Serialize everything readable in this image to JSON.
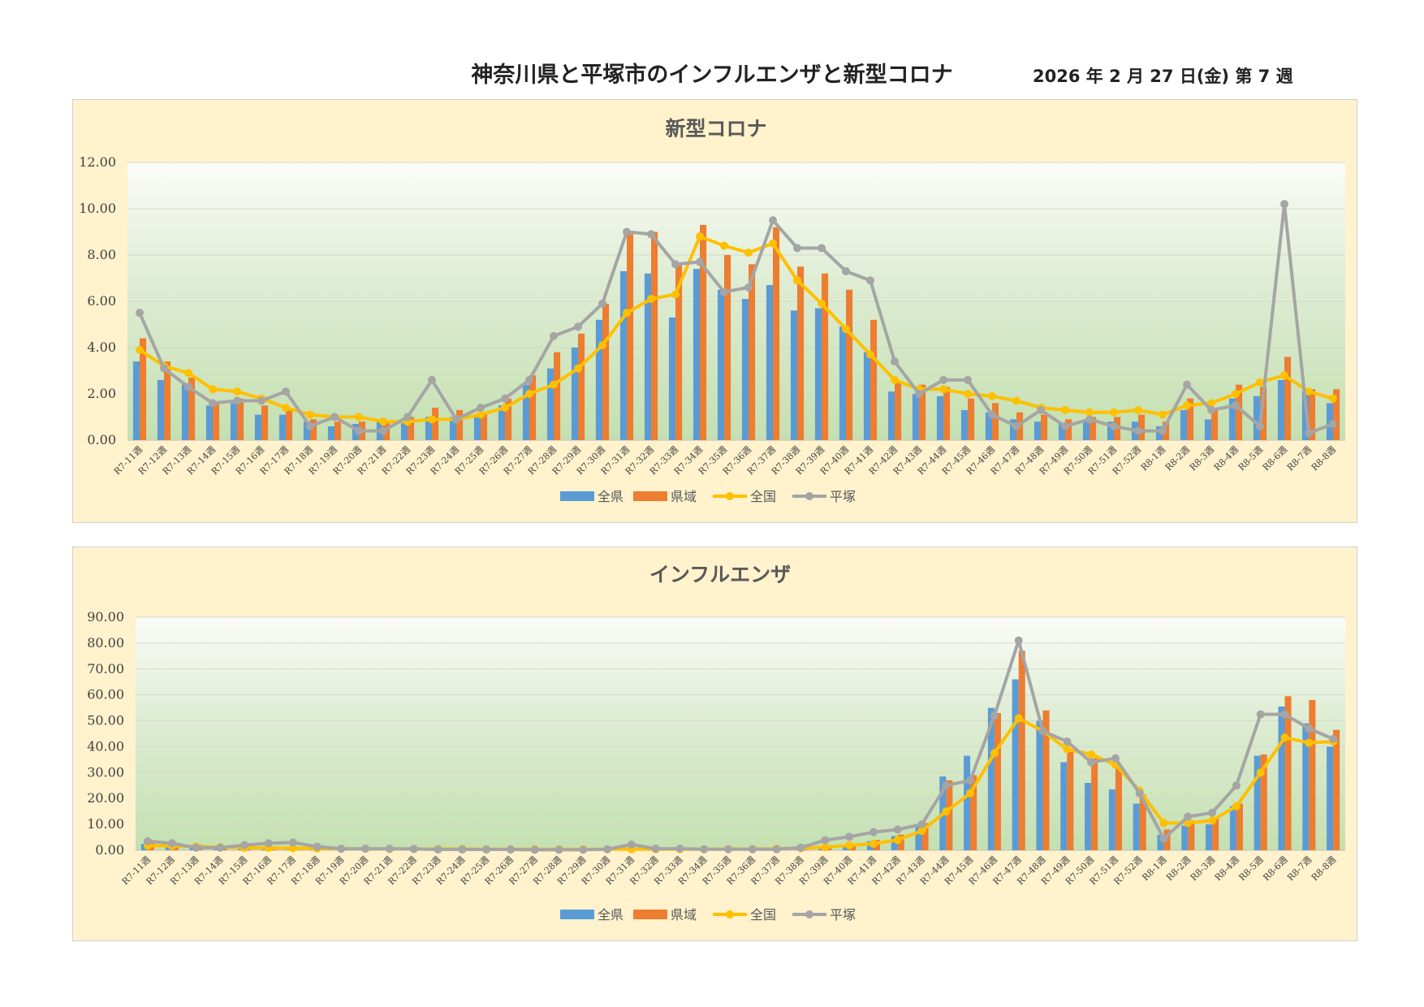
{
  "header": {
    "title": "神奈川県と平塚市のインフルエンザと新型コロナ",
    "date": "2026 年 2 月 27 日(金) 第 7 週"
  },
  "colors": {
    "zenken": "#5b9bd5",
    "kenki": "#ed7d31",
    "zenkoku": "#ffc000",
    "hiratsuka": "#a5a5a5"
  },
  "chart_data": [
    {
      "type": "bar",
      "title": "新型コロナ",
      "ylim": [
        0,
        12
      ],
      "yticks": [
        "0.00",
        "2.00",
        "4.00",
        "6.00",
        "8.00",
        "10.00",
        "12.00"
      ],
      "categories": [
        "R7-11週",
        "R7-12週",
        "R7-13週",
        "R7-14週",
        "R7-15週",
        "R7-16週",
        "R7-17週",
        "R7-18週",
        "R7-19週",
        "R7-20週",
        "R7-21週",
        "R7-22週",
        "R7-23週",
        "R7-24週",
        "R7-25週",
        "R7-26週",
        "R7-27週",
        "R7-28週",
        "R7-29週",
        "R7-30週",
        "R7-31週",
        "R7-32週",
        "R7-33週",
        "R7-34週",
        "R7-35週",
        "R7-36週",
        "R7-37週",
        "R7-38週",
        "R7-39週",
        "R7-40週",
        "R7-41週",
        "R7-42週",
        "R7-43週",
        "R7-44週",
        "R7-45週",
        "R7-46週",
        "R7-47週",
        "R7-48週",
        "R7-49週",
        "R7-50週",
        "R7-51週",
        "R7-52週",
        "R8-1週",
        "R8-2週",
        "R8-3週",
        "R8-4週",
        "R8-5週",
        "R8-6週",
        "R8-7週",
        "R8-8週"
      ],
      "series": [
        {
          "name": "全県",
          "kind": "bar",
          "values": [
            3.4,
            2.6,
            2.4,
            1.5,
            1.6,
            1.1,
            1.1,
            0.8,
            0.6,
            0.7,
            0.8,
            0.9,
            1.0,
            1.0,
            1.0,
            1.5,
            2.4,
            3.1,
            4.0,
            5.2,
            7.3,
            7.2,
            5.3,
            7.4,
            6.5,
            6.1,
            6.7,
            5.6,
            5.7,
            4.9,
            3.8,
            2.1,
            2.0,
            1.9,
            1.3,
            1.2,
            0.9,
            0.8,
            0.7,
            0.8,
            0.8,
            0.8,
            0.6,
            1.3,
            0.9,
            1.8,
            1.9,
            2.6,
            2.1,
            1.6
          ]
        },
        {
          "name": "県域",
          "kind": "bar",
          "values": [
            4.4,
            3.4,
            2.7,
            1.6,
            1.8,
            1.5,
            1.3,
            0.9,
            0.8,
            0.8,
            0.8,
            1.0,
            1.4,
            1.3,
            1.1,
            1.8,
            2.8,
            3.8,
            4.6,
            5.9,
            8.9,
            9.0,
            7.6,
            9.3,
            8.0,
            7.6,
            9.2,
            7.5,
            7.2,
            6.5,
            5.2,
            2.5,
            2.4,
            2.3,
            1.8,
            1.6,
            1.2,
            1.1,
            0.9,
            1.0,
            1.0,
            1.1,
            0.8,
            1.8,
            1.3,
            2.4,
            2.3,
            3.6,
            2.2,
            2.2
          ]
        },
        {
          "name": "全国",
          "kind": "line",
          "values": [
            3.9,
            3.2,
            2.9,
            2.2,
            2.1,
            1.8,
            1.4,
            1.1,
            1.0,
            1.0,
            0.8,
            0.8,
            0.9,
            0.9,
            1.1,
            1.4,
            2.0,
            2.4,
            3.1,
            4.1,
            5.5,
            6.1,
            6.3,
            8.8,
            8.4,
            8.1,
            8.5,
            6.9,
            5.9,
            4.8,
            3.7,
            2.6,
            2.2,
            2.2,
            2.0,
            1.9,
            1.7,
            1.4,
            1.3,
            1.2,
            1.2,
            1.3,
            1.1,
            1.5,
            1.6,
            2.0,
            2.5,
            2.8,
            2.1,
            1.8
          ]
        },
        {
          "name": "平塚",
          "kind": "line",
          "values": [
            5.5,
            3.1,
            2.3,
            1.6,
            1.7,
            1.7,
            2.1,
            0.6,
            1.0,
            0.4,
            0.4,
            1.0,
            2.6,
            0.9,
            1.4,
            1.8,
            2.6,
            4.5,
            4.9,
            5.9,
            9.0,
            8.9,
            7.6,
            7.7,
            6.4,
            6.6,
            9.5,
            8.3,
            8.3,
            7.3,
            6.9,
            3.4,
            2.0,
            2.6,
            2.6,
            1.1,
            0.6,
            1.3,
            0.6,
            0.9,
            0.6,
            0.4,
            0.4,
            2.4,
            1.3,
            1.5,
            0.6,
            10.2,
            0.3,
            0.7
          ]
        }
      ]
    },
    {
      "type": "bar",
      "title": "インフルエンザ",
      "ylim": [
        0,
        90
      ],
      "yticks": [
        "0.00",
        "10.00",
        "20.00",
        "30.00",
        "40.00",
        "50.00",
        "60.00",
        "70.00",
        "80.00",
        "90.00"
      ],
      "categories": [
        "R7-11週",
        "R7-12週",
        "R7-13週",
        "R7-14週",
        "R7-15週",
        "R7-16週",
        "R7-17週",
        "R7-18週",
        "R7-19週",
        "R7-20週",
        "R7-21週",
        "R7-22週",
        "R7-23週",
        "R7-24週",
        "R7-25週",
        "R7-26週",
        "R7-27週",
        "R7-28週",
        "R7-29週",
        "R7-30週",
        "R7-31週",
        "R7-32週",
        "R7-33週",
        "R7-34週",
        "R7-35週",
        "R7-36週",
        "R7-37週",
        "R7-38週",
        "R7-39週",
        "R7-40週",
        "R7-41週",
        "R7-42週",
        "R7-43週",
        "R7-44週",
        "R7-45週",
        "R7-46週",
        "R7-47週",
        "R7-48週",
        "R7-49週",
        "R7-50週",
        "R7-51週",
        "R7-52週",
        "R8-1週",
        "R8-2週",
        "R8-3週",
        "R8-4週",
        "R8-5週",
        "R8-6週",
        "R8-7週",
        "R8-8週"
      ],
      "series": [
        {
          "name": "全県",
          "kind": "bar",
          "values": [
            2.5,
            2.0,
            1.6,
            1.2,
            1.0,
            0.8,
            0.7,
            0.6,
            0.5,
            0.5,
            0.5,
            0.4,
            0.4,
            0.3,
            0.3,
            0.3,
            0.3,
            0.3,
            0.3,
            0.4,
            0.5,
            0.5,
            0.5,
            0.5,
            0.5,
            0.5,
            0.6,
            0.8,
            1.2,
            1.8,
            3.5,
            5.5,
            9.0,
            28.5,
            36.5,
            55.0,
            66.0,
            50.0,
            34.0,
            26.0,
            23.5,
            18.0,
            6.0,
            9.5,
            10.0,
            17.0,
            36.5,
            55.5,
            49.0,
            40.0
          ]
        },
        {
          "name": "県域",
          "kind": "bar",
          "values": [
            3.0,
            2.4,
            2.2,
            1.5,
            1.2,
            1.0,
            0.9,
            0.7,
            0.6,
            0.6,
            0.6,
            0.5,
            0.5,
            0.4,
            0.4,
            0.4,
            0.4,
            0.3,
            0.3,
            0.4,
            0.6,
            0.6,
            0.6,
            0.6,
            0.6,
            0.6,
            0.7,
            0.9,
            1.4,
            2.0,
            4.0,
            6.0,
            10.5,
            27.0,
            29.0,
            53.0,
            77.0,
            54.0,
            38.0,
            35.5,
            33.0,
            21.5,
            8.0,
            11.5,
            12.5,
            18.0,
            37.0,
            59.5,
            58.0,
            46.5
          ]
        },
        {
          "name": "全国",
          "kind": "line",
          "values": [
            1.8,
            1.7,
            1.4,
            1.2,
            1.0,
            0.9,
            0.8,
            0.7,
            0.6,
            0.6,
            0.5,
            0.5,
            0.5,
            0.5,
            0.4,
            0.4,
            0.4,
            0.4,
            0.4,
            0.4,
            0.4,
            0.4,
            0.4,
            0.4,
            0.5,
            0.5,
            0.6,
            0.8,
            1.2,
            1.9,
            2.5,
            4.0,
            7.5,
            15.0,
            22.0,
            37.5,
            51.0,
            46.0,
            39.0,
            37.0,
            33.0,
            23.0,
            10.5,
            10.5,
            11.5,
            17.0,
            30.0,
            43.5,
            41.5,
            42.0
          ]
        },
        {
          "name": "平塚",
          "kind": "line",
          "values": [
            3.5,
            2.7,
            1.0,
            1.0,
            2.0,
            2.7,
            3.0,
            1.4,
            0.6,
            0.6,
            0.6,
            0.5,
            0.3,
            0.3,
            0.3,
            0.3,
            0.2,
            0.2,
            0.2,
            0.4,
            2.2,
            0.6,
            0.6,
            0.4,
            0.4,
            0.4,
            0.4,
            1.0,
            3.9,
            5.2,
            7.0,
            8.0,
            10.0,
            25.0,
            27.0,
            52.0,
            81.0,
            46.0,
            42.0,
            34.0,
            35.5,
            22.0,
            4.5,
            13.0,
            14.5,
            25.0,
            52.5,
            52.5,
            47.0,
            43.0
          ]
        }
      ]
    }
  ]
}
